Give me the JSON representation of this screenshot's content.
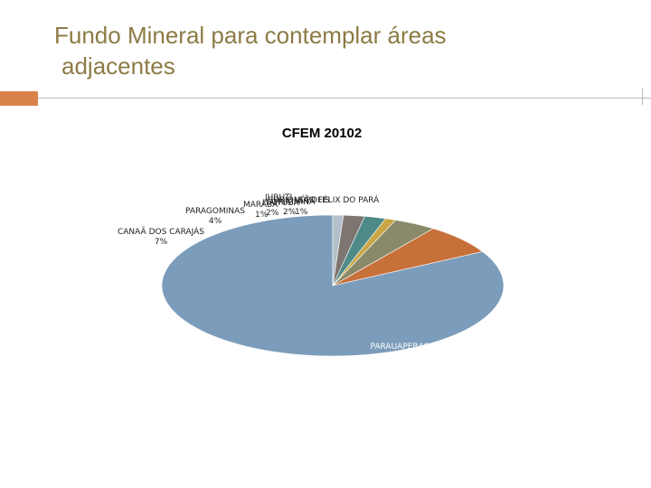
{
  "slide": {
    "title_line1": "Fundo Mineral para contemplar áreas",
    "title_line2": "adjacentes",
    "accent_color": "#d9824a",
    "title_color": "#8c7b45"
  },
  "chart_data": {
    "type": "pie",
    "title": "CFEM 20102",
    "style": "3d",
    "unit": "%",
    "slices": [
      {
        "label": "PARAUAPEBAS",
        "value": 83,
        "display": "83%",
        "color": "#7b9cba",
        "side": "#3f4f5e"
      },
      {
        "label": "CANAÃ DOS CARAJÁS",
        "value": 7,
        "display": "7%",
        "color": "#c8703a",
        "side": "#7e4522"
      },
      {
        "label": "PARAGOMINAS",
        "value": 4,
        "display": "4%",
        "color": "#8a8a6a",
        "side": "#55553f"
      },
      {
        "label": "MARABÁ",
        "value": 1,
        "display": "1%",
        "color": "#c9a646",
        "side": "#7e6a2a"
      },
      {
        "label": "ITAITUBA",
        "value": 2,
        "display": "2%",
        "color": "#4e8a88",
        "side": "#2f5655"
      },
      {
        "label": "ORIXIMINÁ",
        "value": 2,
        "display": "2%",
        "color": "#7d7570",
        "side": "#4d4844"
      },
      {
        "label": "JURUTI",
        "value": 1,
        "display": "1%",
        "color": "#b4bfcb",
        "side": "#737d88"
      },
      {
        "label": "CURIONÓPOLIS",
        "value": 0,
        "display": "",
        "color": "#ffffff",
        "side": "#bbbbbb"
      },
      {
        "label": "SÃO FÉLIX DO PARÁ",
        "value": 0,
        "display": "",
        "color": "#ffffff",
        "side": "#bbbbbb"
      }
    ],
    "labels_overlapping": "MARABÁ · ITAITUBA · ORIXIMINÁ · JURUTI · CURIONÓPOLIS · SÃO FÉLIX DO PARÁ",
    "small_pcts": "1%2%  2%1%"
  }
}
